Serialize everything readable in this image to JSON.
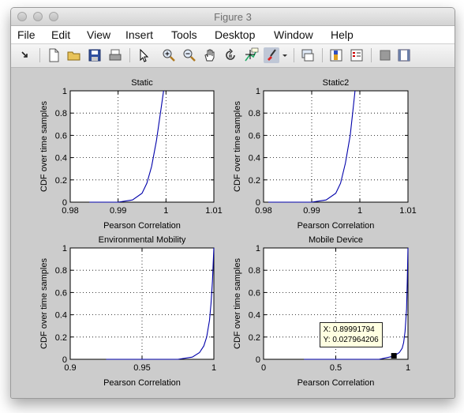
{
  "window": {
    "title": "Figure 3"
  },
  "menu": [
    "File",
    "Edit",
    "View",
    "Insert",
    "Tools",
    "Desktop",
    "Window",
    "Help"
  ],
  "toolbar": {
    "icons": [
      "arrow-icon",
      "new-figure-icon",
      "open-file-icon",
      "save-icon",
      "print-icon",
      "select-pointer-icon",
      "zoom-in-icon",
      "zoom-out-icon",
      "pan-hand-icon",
      "rotate-3d-icon",
      "data-cursor-icon",
      "brush-icon",
      "brush-dropdown-icon",
      "link-plot-icon",
      "colorbar-icon",
      "legend-icon",
      "hide-plot-tools-icon",
      "show-plot-tools-icon"
    ]
  },
  "datatip": {
    "x_text": "X: 0.89991794",
    "y_text": "Y: 0.027964206"
  },
  "chart_data": [
    {
      "type": "line",
      "title": "Static",
      "xlabel": "Pearson Correlation",
      "ylabel": "CDF over time samples",
      "xlim": [
        0.98,
        1.01
      ],
      "ylim": [
        0,
        1
      ],
      "xticks": [
        "0.98",
        "0.99",
        "1",
        "1.01"
      ],
      "yticks": [
        "0",
        "0.2",
        "0.4",
        "0.6",
        "0.8",
        "1"
      ],
      "grid": "dotted",
      "x": [
        0.984,
        0.99,
        0.993,
        0.995,
        0.996,
        0.997,
        0.998,
        0.999,
        0.9995
      ],
      "y": [
        0,
        0.0,
        0.02,
        0.08,
        0.17,
        0.32,
        0.55,
        0.85,
        1.0
      ],
      "color": "#0000aa"
    },
    {
      "type": "line",
      "title": "Static2",
      "xlabel": "Pearson Correlation",
      "ylabel": "CDF over time samples",
      "xlim": [
        0.98,
        1.01
      ],
      "ylim": [
        0,
        1
      ],
      "xticks": [
        "0.98",
        "0.99",
        "1",
        "1.01"
      ],
      "yticks": [
        "0",
        "0.2",
        "0.4",
        "0.6",
        "0.8",
        "1"
      ],
      "grid": "dotted",
      "x": [
        0.981,
        0.99,
        0.993,
        0.995,
        0.996,
        0.997,
        0.998,
        0.9985,
        0.999
      ],
      "y": [
        0,
        0.0,
        0.02,
        0.08,
        0.17,
        0.35,
        0.6,
        0.8,
        1.0
      ],
      "color": "#0000aa"
    },
    {
      "type": "line",
      "title": "Environmental Mobility",
      "xlabel": "Pearson Correlation",
      "ylabel": "CDF over time samples",
      "xlim": [
        0.9,
        1
      ],
      "ylim": [
        0,
        1
      ],
      "xticks": [
        "0.9",
        "0.95",
        "1"
      ],
      "yticks": [
        "0",
        "0.2",
        "0.4",
        "0.6",
        "0.8",
        "1"
      ],
      "grid": "dotted",
      "x": [
        0.925,
        0.975,
        0.985,
        0.99,
        0.993,
        0.995,
        0.997,
        0.998,
        0.999,
        0.9995,
        1.0
      ],
      "y": [
        0,
        0.0,
        0.02,
        0.06,
        0.12,
        0.2,
        0.35,
        0.5,
        0.7,
        0.85,
        1.0
      ],
      "color": "#0000aa"
    },
    {
      "type": "line",
      "title": "Mobile Device",
      "xlabel": "Pearson Correlation",
      "ylabel": "CDF over time samples",
      "xlim": [
        0,
        1
      ],
      "ylim": [
        0,
        1
      ],
      "xticks": [
        "0",
        "0.5",
        "1"
      ],
      "yticks": [
        "0",
        "0.2",
        "0.4",
        "0.6",
        "0.8",
        "1"
      ],
      "grid": "dotted",
      "x": [
        0.28,
        0.8,
        0.9,
        0.94,
        0.96,
        0.97,
        0.98,
        0.99,
        0.995,
        1.0
      ],
      "y": [
        0,
        0.0,
        0.028,
        0.06,
        0.1,
        0.15,
        0.25,
        0.45,
        0.7,
        1.0
      ],
      "color": "#0000aa",
      "datatip": {
        "x": 0.89991794,
        "y": 0.027964206
      }
    }
  ]
}
